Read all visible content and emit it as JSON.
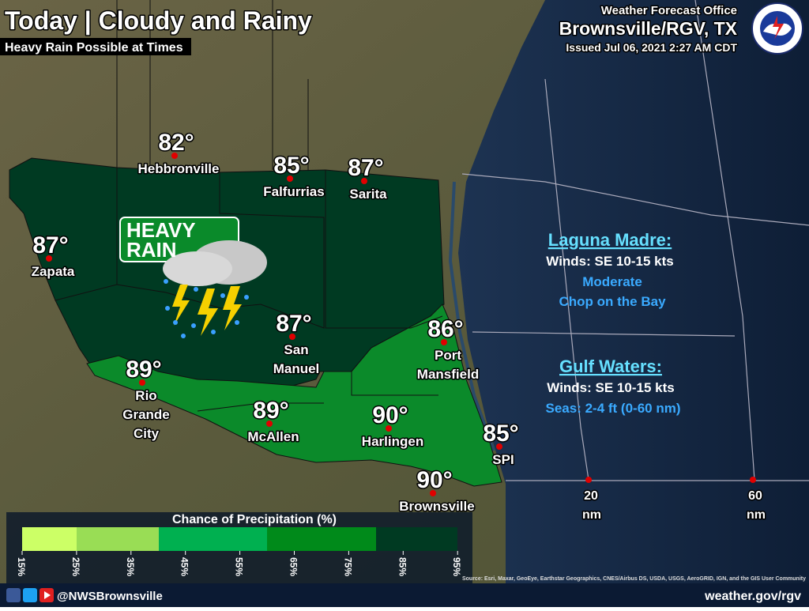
{
  "header": {
    "title": "Today | Cloudy and Rainy",
    "subtitle": "Heavy Rain Possible at Times"
  },
  "office": {
    "name": "Weather Forecast Office",
    "location": "Brownsville/RGV, TX",
    "issued": "Issued Jul 06, 2021 2:27 AM CDT"
  },
  "hazard": [
    "HEAVY",
    "RAIN"
  ],
  "cities": [
    {
      "temp": "82°",
      "name": [
        "Hebbronville"
      ]
    },
    {
      "temp": "85°",
      "name": [
        "Falfurrias"
      ]
    },
    {
      "temp": "87°",
      "name": [
        "Sarita"
      ]
    },
    {
      "temp": "87°",
      "name": [
        "Zapata"
      ]
    },
    {
      "temp": "87°",
      "name": [
        "San",
        "Manuel"
      ]
    },
    {
      "temp": "86°",
      "name": [
        "Port",
        "Mansfield"
      ]
    },
    {
      "temp": "89°",
      "name": [
        "Rio",
        "Grande",
        "City"
      ]
    },
    {
      "temp": "89°",
      "name": [
        "McAllen"
      ]
    },
    {
      "temp": "90°",
      "name": [
        "Harlingen"
      ]
    },
    {
      "temp": "85°",
      "name": [
        "SPI"
      ]
    },
    {
      "temp": "90°",
      "name": [
        "Brownsville"
      ]
    }
  ],
  "marine": [
    {
      "title": "Laguna Madre:",
      "winds": "Winds: SE 10-15 kts",
      "details": [
        "Moderate",
        "Chop on the Bay"
      ]
    },
    {
      "title": "Gulf Waters:",
      "winds": "Winds: SE 10-15 kts",
      "details": [
        "Seas:  2-4 ft (0-60 nm)"
      ]
    }
  ],
  "distance_markers": [
    {
      "value": "20",
      "unit": "nm"
    },
    {
      "value": "60",
      "unit": "nm"
    }
  ],
  "legend": {
    "title": "Chance of Precipitation (%)",
    "ticks": [
      "15%",
      "25%",
      "35%",
      "45%",
      "55%",
      "65%",
      "75%",
      "85%",
      "95%"
    ]
  },
  "credits": "Source: Esri, Maxar, GeoEye, Earthstar Geographics, CNES/Airbus DS, USDA, USGS, AeroGRID, IGN, and the GIS User Community",
  "footer": {
    "handle": "@NWSBrownsville",
    "url": "weather.gov/rgv"
  }
}
